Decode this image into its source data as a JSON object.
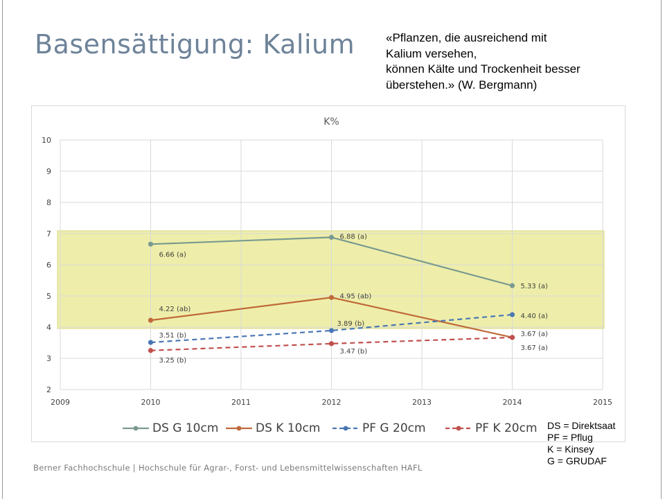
{
  "slide": {
    "title": "Basensättigung: Kalium",
    "quote_lines": [
      "«Pflanzen, die ausreichend mit",
      "Kalium versehen,",
      "können Kälte und Trockenheit besser",
      "überstehen.» (W. Bergmann)"
    ],
    "abbreviations": [
      "DS = Direktsaat",
      "PF = Pflug",
      "K = Kinsey",
      "G = GRUDAF"
    ],
    "footer": "Berner Fachhochschule | Hochschule für Agrar-, Forst- und Lebensmittelwissenschaften HAFL"
  },
  "chart_data": {
    "type": "line",
    "title": "K%",
    "xlabel": "",
    "ylabel": "",
    "xlim": [
      2009,
      2015
    ],
    "ylim": [
      2,
      10
    ],
    "x_ticks": [
      2009,
      2010,
      2011,
      2012,
      2013,
      2014,
      2015
    ],
    "y_ticks": [
      2,
      3,
      4,
      5,
      6,
      7,
      8,
      9,
      10
    ],
    "grid": true,
    "legend": "bottom",
    "highlight_band": {
      "y_range": [
        4,
        7
      ],
      "color": "#eeeeaa"
    },
    "series": [
      {
        "name": "DS G 10cm",
        "color": "#7a9a8f",
        "dashed": false,
        "x": [
          2010,
          2012,
          2014
        ],
        "y": [
          6.66,
          6.88,
          5.33
        ],
        "labels": [
          "6.66 (a)",
          "6.88 (a)",
          "5.33 (a)"
        ]
      },
      {
        "name": "DS K 10cm",
        "color": "#c0693a",
        "dashed": false,
        "x": [
          2010,
          2012,
          2014
        ],
        "y": [
          4.22,
          4.95,
          3.67
        ],
        "labels": [
          "4.22 (ab)",
          "4.95 (ab)",
          "3.67 (a)"
        ]
      },
      {
        "name": "PF G 20cm",
        "color": "#4a77b4",
        "dashed": true,
        "x": [
          2010,
          2012,
          2014
        ],
        "y": [
          3.51,
          3.89,
          4.4
        ],
        "labels": [
          "3.51 (b)",
          "3.89 (b)",
          "4.40 (a)"
        ]
      },
      {
        "name": "PF K 20cm",
        "color": "#c0504d",
        "dashed": true,
        "x": [
          2010,
          2012,
          2014
        ],
        "y": [
          3.25,
          3.47,
          3.67
        ],
        "labels": [
          "3.25 (b)",
          "3.47 (b)",
          "3.67 (a)"
        ]
      }
    ]
  }
}
